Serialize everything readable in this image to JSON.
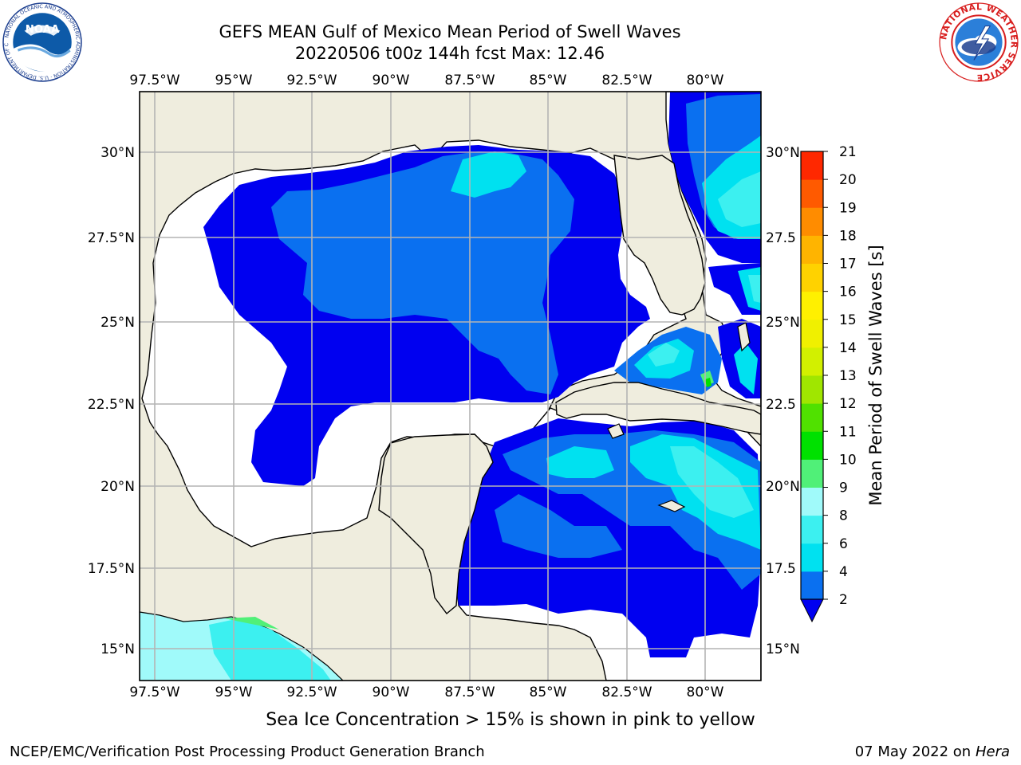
{
  "header": {
    "title_line1": "GEFS MEAN Gulf of Mexico Mean Period of Swell Waves",
    "title_line2": "20220506 t00z 144h fcst   Max: 12.46"
  },
  "logos": {
    "left": {
      "icon": "noaa-logo",
      "text_center": "NOAA",
      "ring_text": "NATIONAL OCEANIC AND ATMOSPHERIC ADMINISTRATION · U.S. DEPARTMENT OF COMMERCE"
    },
    "right": {
      "icon": "nws-logo",
      "ring_text": "NATIONAL WEATHER SERVICE"
    }
  },
  "map": {
    "region": "Gulf of Mexico",
    "lon_ticks": [
      "97.5°W",
      "95°W",
      "92.5°W",
      "90°W",
      "87.5°W",
      "85°W",
      "82.5°W",
      "80°W"
    ],
    "lat_ticks": [
      "30°N",
      "27.5°N",
      "25°N",
      "22.5°N",
      "20°N",
      "17.5°N",
      "15°N"
    ],
    "lat_ticks_right": [
      "30°N",
      "27.5",
      "25°N",
      "22.5",
      "20°N",
      "17.5",
      "15°N"
    ],
    "colors": {
      "land": "#efedde",
      "coast": "#000000",
      "grid": "#b4b4b4",
      "no_data": "#ffffff"
    }
  },
  "colorbar": {
    "label": "Mean Period of Swell Waves [s]",
    "ticks": [
      "2",
      "4",
      "6",
      "8",
      "9",
      "10",
      "11",
      "12",
      "13",
      "14",
      "15",
      "16",
      "17",
      "18",
      "19",
      "20",
      "21"
    ],
    "colors": [
      "#0a70f0",
      "#00e1f0",
      "#3cf0f0",
      "#a0fafa",
      "#50f078",
      "#00e100",
      "#50e100",
      "#a0e600",
      "#d2f000",
      "#f0f000",
      "#fff000",
      "#ffd200",
      "#ffb400",
      "#ff8c00",
      "#ff5a00",
      "#ff2800",
      "#ff0000"
    ],
    "extend_color": "#0000f0"
  },
  "footer": {
    "note": "Sea Ice Concentration > 15% is shown in pink to yellow",
    "credit": "NCEP/EMC/Verification Post Processing Product Generation Branch",
    "date": "07 May 2022 on",
    "host": "Hera"
  }
}
